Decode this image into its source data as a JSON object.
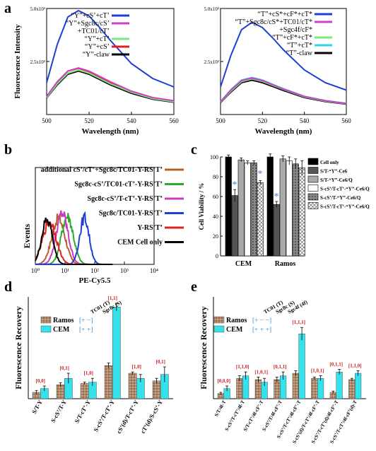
{
  "panel_letters": [
    "a",
    "b",
    "c",
    "d",
    "e"
  ],
  "chart_data": [
    {
      "panel": "a-left",
      "type": "line",
      "xlabel": "Wavelength (nm)",
      "ylabel": "Fluorescence Intensity",
      "xlim": [
        500,
        560
      ],
      "ylim": [
        0,
        50000
      ],
      "x_ticks": [
        "500",
        "520",
        "540",
        "560"
      ],
      "y_ticks": [
        "2.5x10³",
        "5.0x10³"
      ],
      "x": [
        500,
        505,
        510,
        515,
        520,
        525,
        530,
        540,
        550,
        560
      ],
      "series": [
        {
          "name": "“Y”+cS’+cT’",
          "color": "#1f3ed6",
          "values": [
            15000,
            33000,
            46000,
            49000,
            46500,
            41000,
            35000,
            24000,
            17000,
            13000
          ]
        },
        {
          "name": "“Y”+Sgc8c/cS’+TC01/cT’",
          "color": "#d23cc8",
          "values": [
            8500,
            15500,
            20500,
            22000,
            20500,
            18000,
            15500,
            11000,
            8000,
            6500
          ]
        },
        {
          "name": "“Y”+cT’",
          "color": "#7be87b",
          "values": [
            8000,
            14500,
            19500,
            21000,
            19500,
            17000,
            14500,
            10500,
            7500,
            6000
          ]
        },
        {
          "name": "“Y”+cS’",
          "color": "#e02020",
          "values": [
            8500,
            15000,
            20500,
            21800,
            20200,
            17500,
            15000,
            10800,
            7800,
            6300
          ]
        },
        {
          "name": "“Y”-claw",
          "color": "#000000",
          "values": [
            7800,
            14000,
            19000,
            20500,
            19000,
            16500,
            14000,
            10000,
            7200,
            5800
          ]
        }
      ]
    },
    {
      "panel": "a-right",
      "type": "line",
      "xlabel": "Wavelength (nm)",
      "ylabel": "",
      "xlim": [
        500,
        560
      ],
      "ylim": [
        0,
        50000
      ],
      "x_ticks": [
        "500",
        "520",
        "540",
        "560"
      ],
      "y_ticks": [
        "2.5x10³",
        "5.0x10³"
      ],
      "x": [
        500,
        505,
        510,
        515,
        520,
        525,
        530,
        540,
        550,
        560
      ],
      "series": [
        {
          "name": "“T”+cS*+cF*+cT*",
          "color": "#1f3ed6",
          "values": [
            13000,
            28000,
            40000,
            43500,
            41000,
            36000,
            30500,
            21000,
            15000,
            11500
          ]
        },
        {
          "name": "“T”+Sgc8c/cS*+TC01/cT*+Sgc4f/cF*",
          "color": "#d23cc8",
          "values": [
            6000,
            11500,
            16000,
            17200,
            16000,
            14000,
            12000,
            8500,
            6500,
            5200
          ]
        },
        {
          "name": "“T”+cF*+cT*",
          "color": "#7be87b",
          "values": [
            5800,
            11000,
            15500,
            16800,
            15600,
            13700,
            11800,
            8300,
            6300,
            5100
          ]
        },
        {
          "name": "“T”+cT*",
          "color": "#2fd6e8",
          "values": [
            6100,
            11800,
            16300,
            17500,
            16300,
            14200,
            12200,
            8600,
            6600,
            5300
          ]
        },
        {
          "name": "“T”-claw",
          "color": "#000000",
          "values": [
            5600,
            10600,
            15000,
            16200,
            15000,
            13200,
            11300,
            8000,
            6100,
            4900
          ]
        }
      ]
    },
    {
      "panel": "b",
      "type": "line",
      "xlabel": "PE-Cy5.5",
      "ylabel": "Events",
      "xscale": "log",
      "xlim": [
        1,
        10000
      ],
      "x_ticks": [
        "10⁰",
        "10¹",
        "10²",
        "10³",
        "10⁴"
      ],
      "series": [
        {
          "name": "additional cS’/cT’+Sgc8c/TC01-Y-RS’T’",
          "color": "#b8602a",
          "peak": 6
        },
        {
          "name": "Sgc8c-cS’/TC01-cT’-Y-RS’T’",
          "color": "#2ea82e",
          "peak": 12
        },
        {
          "name": "Sgc8c-cS’/T-cT’-Y-RS’T’",
          "color": "#c83cc0",
          "peak": 8
        },
        {
          "name": "Sgc8c/TC01-Y-RS’T’",
          "color": "#1f3ed6",
          "peak": 45
        },
        {
          "name": "Y-RS’T’",
          "color": "#e02020",
          "peak": 3
        },
        {
          "name": "CEM Cell only",
          "color": "#000000",
          "peak": 2.5
        }
      ]
    },
    {
      "panel": "c",
      "type": "bar",
      "ylabel": "Cell Viability / %",
      "ylim": [
        0,
        100
      ],
      "y_ticks": [
        "0",
        "20",
        "40",
        "60",
        "80",
        "100"
      ],
      "categories": [
        "CEM",
        "Ramos"
      ],
      "series": [
        {
          "name": "Cell only",
          "values": [
            100,
            100
          ],
          "errors": [
            2,
            3
          ]
        },
        {
          "name": "S/T-“Y”-Ce6",
          "values": [
            61,
            52
          ],
          "errors": [
            6,
            3
          ]
        },
        {
          "name": "S/T-“Y”-Ce6/Q",
          "values": [
            97,
            98
          ],
          "errors": [
            2,
            3
          ]
        },
        {
          "name": "S-cS’/T-cT’-“Y”-Ce6/Q",
          "values": [
            94,
            96
          ],
          "errors": [
            2,
            4
          ]
        },
        {
          "name": "S-cS’/T-“Y”-Ce6/Q",
          "values": [
            94,
            93
          ],
          "errors": [
            2,
            5
          ]
        },
        {
          "name": "S-cS’/T-cT’-“Y”-Ce6/Q",
          "values": [
            74,
            89
          ],
          "errors": [
            2,
            7
          ]
        }
      ],
      "annotations": [
        "*",
        "*",
        "*"
      ]
    },
    {
      "panel": "d",
      "type": "bar",
      "ylabel": "Fluorescence Recovery",
      "ylim": [
        0,
        0.8
      ],
      "categories": [
        "S/T-Y",
        "S-cS’/T-Y",
        "S/T-cT’-Y",
        "S-cS’/T-cT’-Y",
        "cS’(d)/T-cT’-Y",
        "cT’(d)/S-cS’-Y"
      ],
      "codes": [
        "[0,0]",
        "[0,1]",
        "[1,0]",
        "[1,1]",
        "[1,0]",
        "[0,1]"
      ],
      "series": [
        {
          "name": "Ramos",
          "values": [
            0.05,
            0.11,
            0.12,
            0.26,
            0.2,
            0.14
          ],
          "errors": [
            0.015,
            0.015,
            0.01,
            0.02,
            0.01,
            0.02
          ]
        },
        {
          "name": "CEM",
          "values": [
            0.08,
            0.16,
            0.13,
            0.72,
            0.16,
            0.19
          ],
          "errors": [
            0.02,
            0.04,
            0.03,
            0.03,
            0.03,
            0.06
          ]
        }
      ],
      "legend_header": {
        "tc01": "TC01 (T)",
        "sgc8c": "Sgc8c (S)"
      },
      "legend_codes": [
        "[+   −]",
        "[+   +]"
      ]
    },
    {
      "panel": "e",
      "type": "bar",
      "ylabel": "Fluorescence Recovery",
      "ylim": [
        0,
        0.8
      ],
      "categories": [
        "S/T/4f-T",
        "S-cS’/T-cT’/4f-T",
        "S/T-cT’/4f-cF’-T",
        "S-cS’/T/4f-cF’-T",
        "S-cS’/T-cT’/4f-cF’-T",
        "S-cS’(d)/T-cT’/4f-cF’-T",
        "S-cS’/T-cT’(d)/4f-cF’-T",
        "S-cS’/T-cT’/4f-cF’(d)-T"
      ],
      "codes": [
        "[0,0,0]",
        "[1,1,0]",
        "[1,0,1]",
        "[0,1,1]",
        "[1,1,1]",
        "[1,0,1]",
        "[0,1,1]",
        "[1,1,0]"
      ],
      "series": [
        {
          "name": "Ramos",
          "values": [
            0.04,
            0.16,
            0.15,
            0.15,
            0.2,
            0.16,
            0.05,
            0.15
          ],
          "errors": [
            0.01,
            0.02,
            0.02,
            0.02,
            0.02,
            0.01,
            0.01,
            0.01
          ]
        },
        {
          "name": "CEM",
          "values": [
            0.08,
            0.18,
            0.13,
            0.18,
            0.51,
            0.16,
            0.21,
            0.2
          ],
          "errors": [
            0.02,
            0.03,
            0.03,
            0.03,
            0.05,
            0.02,
            0.02,
            0.02
          ]
        }
      ],
      "legend_header": {
        "tc01": "TC01 (T)",
        "sgc8c": "Sgc8c (S)",
        "sgc4f": "Sgc4f (4f)"
      },
      "legend_codes": [
        "[+   −   −]",
        "[+   +   +]"
      ]
    }
  ]
}
